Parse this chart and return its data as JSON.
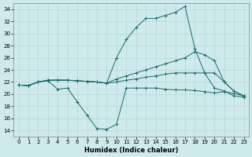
{
  "xlabel": "Humidex (Indice chaleur)",
  "bg_color": "#ceeaea",
  "grid_color": "#b8d8d8",
  "line_color": "#1a6b6b",
  "xlim": [
    -0.5,
    23.5
  ],
  "ylim": [
    13,
    35
  ],
  "yticks": [
    14,
    16,
    18,
    20,
    22,
    24,
    26,
    28,
    30,
    32,
    34
  ],
  "xticks": [
    0,
    1,
    2,
    3,
    4,
    5,
    6,
    7,
    8,
    9,
    10,
    11,
    12,
    13,
    14,
    15,
    16,
    17,
    18,
    19,
    20,
    21,
    22,
    23
  ],
  "series": [
    {
      "x": [
        0,
        1,
        2,
        3,
        4,
        5,
        6,
        7,
        8,
        9,
        10,
        11,
        12,
        13,
        14,
        15,
        16,
        17,
        18,
        19,
        20,
        21,
        22,
        23
      ],
      "y": [
        21.5,
        21.4,
        22.0,
        22.2,
        20.8,
        21.0,
        18.7,
        16.5,
        14.3,
        14.2,
        15.0,
        21.0,
        21.0,
        21.0,
        21.0,
        20.8,
        20.7,
        20.7,
        20.6,
        20.4,
        20.2,
        20.4,
        20.1,
        19.7
      ]
    },
    {
      "x": [
        0,
        1,
        2,
        3,
        4,
        5,
        6,
        7,
        8,
        9,
        10,
        11,
        12,
        13,
        14,
        15,
        16,
        17,
        18,
        19,
        20,
        21,
        22,
        23
      ],
      "y": [
        21.5,
        21.4,
        22.0,
        22.3,
        22.3,
        22.3,
        22.2,
        22.1,
        22.0,
        21.8,
        22.0,
        22.3,
        22.5,
        22.8,
        23.0,
        23.3,
        23.5,
        23.5,
        23.5,
        23.5,
        23.5,
        22.0,
        20.5,
        19.7
      ]
    },
    {
      "x": [
        0,
        1,
        2,
        3,
        4,
        5,
        6,
        7,
        8,
        9,
        10,
        11,
        12,
        13,
        14,
        15,
        16,
        17,
        18,
        19,
        20,
        21,
        22,
        23
      ],
      "y": [
        21.5,
        21.4,
        22.0,
        22.3,
        22.3,
        22.3,
        22.2,
        22.1,
        22.0,
        21.8,
        22.5,
        23.0,
        23.5,
        24.0,
        24.5,
        25.0,
        25.5,
        26.0,
        27.0,
        26.5,
        25.5,
        22.0,
        20.5,
        19.7
      ]
    },
    {
      "x": [
        0,
        1,
        2,
        3,
        4,
        5,
        6,
        7,
        8,
        9,
        10,
        11,
        12,
        13,
        14,
        15,
        16,
        17,
        18,
        19,
        20,
        21,
        22,
        23
      ],
      "y": [
        21.5,
        21.4,
        22.0,
        22.3,
        22.3,
        22.3,
        22.2,
        22.1,
        22.0,
        21.8,
        26.0,
        29.0,
        31.0,
        32.5,
        32.5,
        33.0,
        33.5,
        34.5,
        27.5,
        23.5,
        21.0,
        20.5,
        19.7,
        19.5
      ]
    }
  ]
}
